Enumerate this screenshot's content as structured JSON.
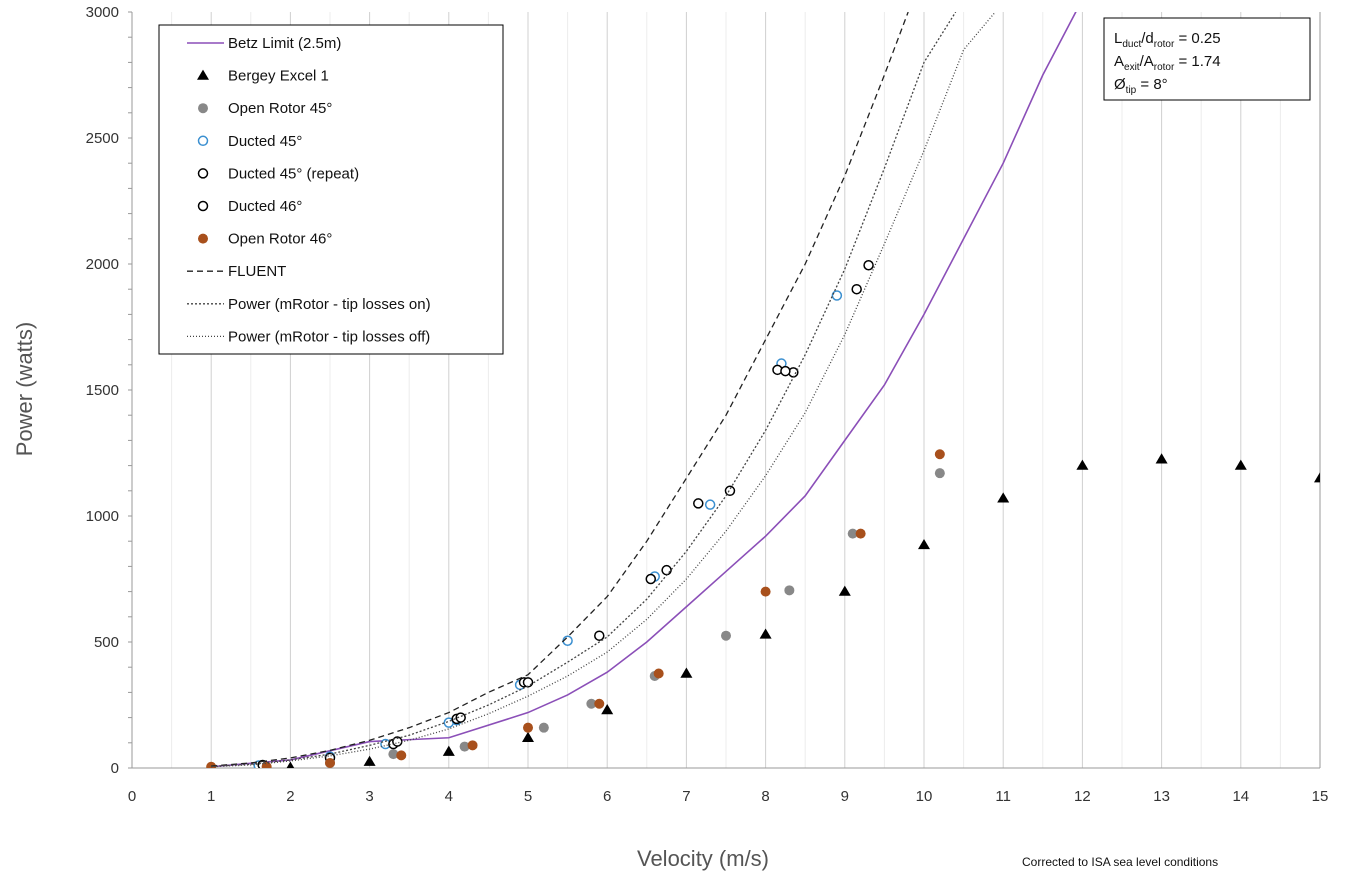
{
  "chart_data": {
    "type": "scatter",
    "xlabel": "Velocity (m/s)",
    "ylabel": "Power (watts)",
    "xlim": [
      0,
      15
    ],
    "ylim": [
      0,
      3000
    ],
    "x_ticks": [
      0,
      1,
      2,
      3,
      4,
      5,
      6,
      7,
      8,
      9,
      10,
      11,
      12,
      13,
      14,
      15
    ],
    "y_ticks": [
      0,
      500,
      1000,
      1500,
      2000,
      2500,
      3000
    ],
    "grid": "vertical major and minor",
    "legend_position": "top-left",
    "note": "Corrected to ISA sea level conditions",
    "annotation": {
      "line1": {
        "main": "L",
        "sub1": "duct",
        "mid": "/d",
        "sub2": "rotor",
        "tail": " = 0.25"
      },
      "line2": {
        "main": "A",
        "sub1": "exit",
        "mid": "/A",
        "sub2": "rotor",
        "tail": " = 1.74"
      },
      "line3": {
        "main": "Ø",
        "sub1": "tip",
        "tail": " = 8°"
      }
    },
    "series": [
      {
        "name": "Betz Limit (2.5m)",
        "kind": "line",
        "color": "#8b4fb8",
        "dash": "",
        "x": [
          1,
          2,
          3,
          4,
          5,
          5.5,
          6,
          6.5,
          7,
          7.5,
          8,
          8.5,
          9,
          9.5,
          10,
          10.5,
          11,
          11.5,
          12
        ],
        "y": [
          5,
          32,
          105,
          120,
          220,
          290,
          380,
          500,
          640,
          780,
          920,
          1080,
          1300,
          1520,
          1800,
          2100,
          2400,
          2750,
          3050
        ]
      },
      {
        "name": "Bergey Excel 1",
        "kind": "triangle",
        "color": "#000000",
        "x": [
          1,
          2,
          3,
          4,
          5,
          6,
          7,
          8,
          9,
          10,
          11,
          12,
          13,
          14,
          15
        ],
        "y": [
          0,
          2,
          25,
          65,
          120,
          230,
          375,
          530,
          700,
          885,
          1070,
          1200,
          1225,
          1200,
          1150
        ]
      },
      {
        "name": "Open Rotor 45°",
        "kind": "filled",
        "color": "#888888",
        "x": [
          1.6,
          2.5,
          3.3,
          4.2,
          5.2,
          5.8,
          6.6,
          7.5,
          8.3,
          9.1,
          10.2
        ],
        "y": [
          10,
          20,
          55,
          85,
          160,
          255,
          365,
          525,
          705,
          930,
          1170
        ]
      },
      {
        "name": "Ducted 45°",
        "kind": "open",
        "color": "#3a8fd0",
        "x": [
          1.6,
          2.5,
          3.2,
          4.0,
          4.1,
          4.9,
          5.5,
          6.6,
          7.3,
          8.2,
          8.9
        ],
        "y": [
          10,
          45,
          95,
          180,
          190,
          330,
          505,
          760,
          1045,
          1605,
          1875
        ]
      },
      {
        "name": "Ducted 45° (repeat)",
        "kind": "open",
        "color": "#000000",
        "x": [
          1.65,
          3.3,
          4.1,
          4.95,
          5.9,
          6.55,
          7.15,
          8.15,
          8.35,
          9.15
        ],
        "y": [
          12,
          95,
          195,
          340,
          525,
          750,
          1050,
          1580,
          1570,
          1900
        ]
      },
      {
        "name": "Ducted 46°",
        "kind": "open",
        "color": "#000000",
        "x": [
          2.5,
          3.35,
          4.15,
          5.0,
          6.75,
          7.55,
          8.25,
          9.3
        ],
        "y": [
          40,
          105,
          200,
          340,
          785,
          1100,
          1575,
          1995
        ]
      },
      {
        "name": "Open Rotor 46°",
        "kind": "filled",
        "color": "#a8501c",
        "x": [
          1.0,
          1.7,
          2.5,
          3.4,
          4.3,
          5.0,
          5.9,
          6.65,
          8.0,
          9.2,
          10.2
        ],
        "y": [
          5,
          5,
          20,
          50,
          90,
          160,
          255,
          375,
          700,
          930,
          1245
        ]
      },
      {
        "name": "FLUENT",
        "kind": "line",
        "color": "#222222",
        "dash": "6,4",
        "x": [
          1,
          1.5,
          2,
          2.5,
          3,
          3.5,
          4,
          4.5,
          5,
          5.5,
          6,
          6.5,
          7,
          7.5,
          8,
          8.5,
          9,
          9.5,
          9.8
        ],
        "y": [
          8,
          20,
          40,
          70,
          110,
          160,
          220,
          300,
          370,
          520,
          680,
          900,
          1150,
          1400,
          1700,
          2000,
          2350,
          2750,
          3000
        ]
      },
      {
        "name": "Power  (mRotor - tip losses on)",
        "kind": "line",
        "color": "#444444",
        "dash": "2,2",
        "x": [
          1,
          1.5,
          2,
          2.5,
          3,
          3.5,
          4,
          4.5,
          5,
          5.5,
          6,
          6.5,
          7,
          7.5,
          8,
          8.5,
          9,
          9.5,
          10,
          10.4
        ],
        "y": [
          6,
          15,
          32,
          55,
          90,
          130,
          185,
          250,
          325,
          420,
          520,
          670,
          860,
          1080,
          1340,
          1640,
          1980,
          2380,
          2800,
          3000
        ]
      },
      {
        "name": "Power  (mRotor - tip losses off)",
        "kind": "line",
        "color": "#444444",
        "dash": "1,2",
        "x": [
          1,
          1.5,
          2,
          2.5,
          3,
          3.5,
          4,
          4.5,
          5,
          5.5,
          6,
          6.5,
          7,
          7.5,
          8,
          8.5,
          9,
          9.5,
          10,
          10.5,
          10.9
        ],
        "y": [
          5,
          12,
          28,
          48,
          75,
          110,
          155,
          215,
          285,
          365,
          460,
          590,
          750,
          940,
          1160,
          1410,
          1720,
          2080,
          2450,
          2850,
          3000
        ]
      }
    ]
  }
}
